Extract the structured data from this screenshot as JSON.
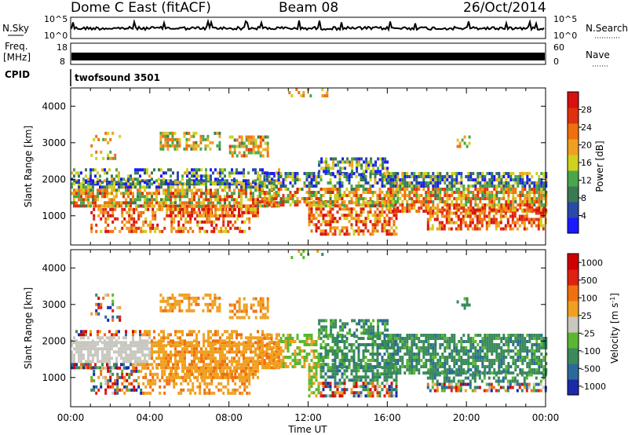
{
  "header": {
    "radar": "Dome C East (fitACF)",
    "beam": "Beam 08",
    "date": "26/Oct/2014"
  },
  "strips": {
    "nsky": {
      "label": "N.Sky",
      "left_ticks": [
        "10^5",
        "10^0"
      ],
      "right_label": "N.Search",
      "right_ticks": [
        "10^5",
        "10^0"
      ]
    },
    "freq": {
      "label_lines": [
        "Freq.",
        "[MHz]"
      ],
      "ticks": [
        "18",
        "8"
      ],
      "right_label": "Nave",
      "right_ticks": [
        "60",
        "0"
      ]
    },
    "cpid": {
      "label": "CPID",
      "value": "twofsound 3501"
    }
  },
  "chart_data": [
    {
      "type": "heatmap",
      "name": "power",
      "ylabel": "Slant Range [km]",
      "ylim": [
        200,
        4500
      ],
      "y_ticks": [
        1000,
        2000,
        3000,
        4000
      ],
      "xlim_hours": [
        0,
        24
      ],
      "colorbar": {
        "label": "Power [dB]",
        "ticks": [
          "4",
          "8",
          "12",
          "16",
          "20",
          "24",
          "28"
        ],
        "colors": [
          "#1a1aff",
          "#2a4aa8",
          "#3a7a52",
          "#4aa64a",
          "#d0d020",
          "#f0a020",
          "#f07010",
          "#e03010",
          "#d81010"
        ]
      }
    },
    {
      "type": "heatmap",
      "name": "velocity",
      "ylabel": "Slant Range [km]",
      "xlabel": "Time UT",
      "ylim": [
        200,
        4500
      ],
      "y_ticks": [
        1000,
        2000,
        3000,
        4000
      ],
      "xlim_hours": [
        0,
        24
      ],
      "x_tick_labels": [
        "00:00",
        "04:00",
        "08:00",
        "12:00",
        "16:00",
        "20:00",
        "00:00"
      ],
      "colorbar": {
        "label": "Velocity [m s^-1]",
        "ticks": [
          "1000",
          "500",
          "100",
          "25",
          "-25",
          "-100",
          "-500",
          "-1000"
        ],
        "colors": [
          "#1a2aa8",
          "#2a6a9a",
          "#3a8a5a",
          "#5ab830",
          "#c8c8c0",
          "#f0a020",
          "#f07010",
          "#e02010",
          "#d00000"
        ]
      }
    }
  ]
}
